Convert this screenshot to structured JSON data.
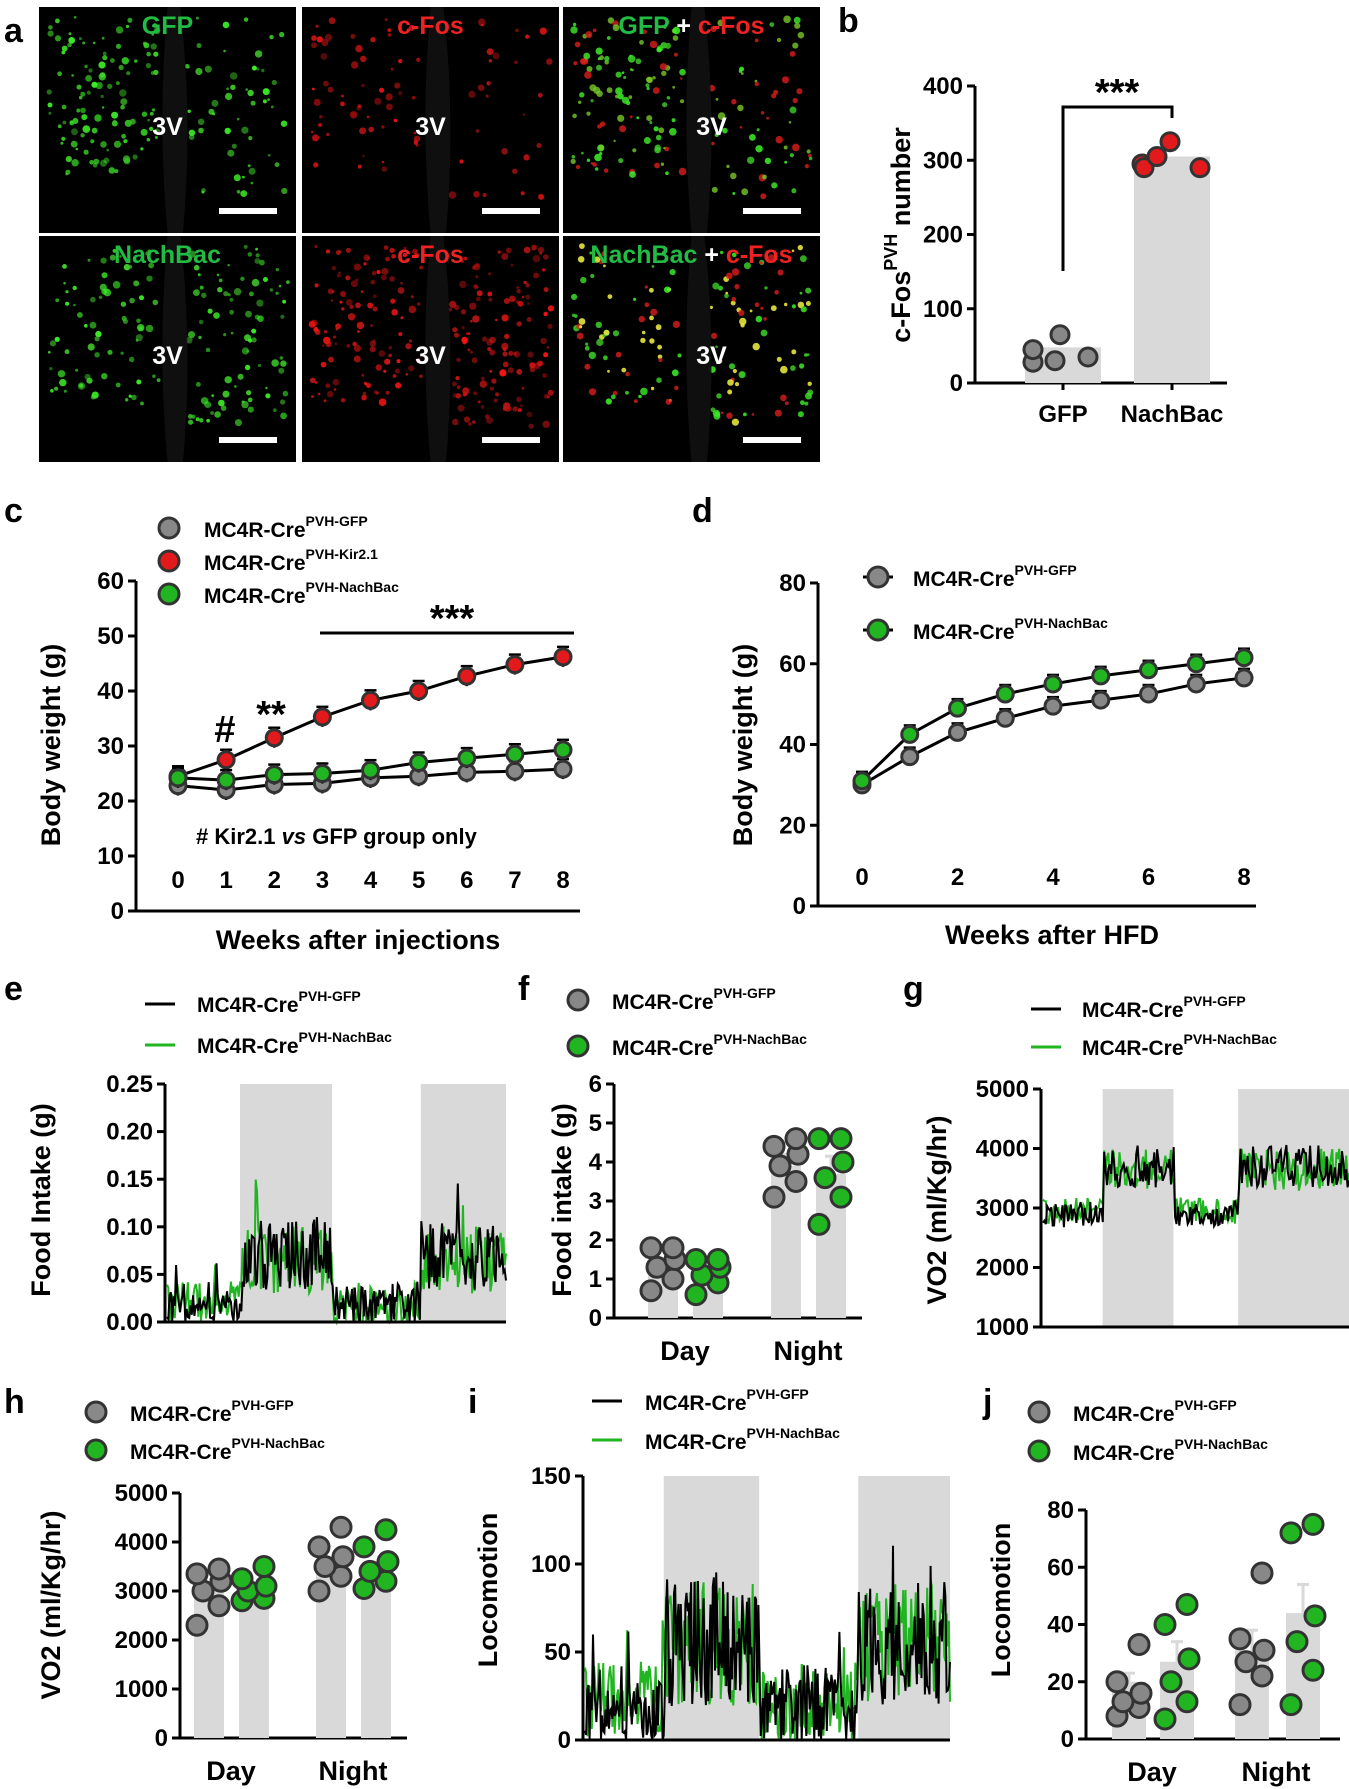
{
  "panels": {
    "a": {
      "label": "a",
      "tiles": [
        {
          "parts": [
            {
              "text": "GFP",
              "color": "#22bb44"
            }
          ],
          "region": "3V",
          "channel": "green"
        },
        {
          "parts": [
            {
              "text": "c-Fos",
              "color": "#ee2222"
            }
          ],
          "region": "3V",
          "channel": "red"
        },
        {
          "parts": [
            {
              "text": "GFP",
              "color": "#22bb44"
            },
            {
              "text": " + ",
              "color": "#ffffff"
            },
            {
              "text": "c-Fos",
              "color": "#ee2222"
            }
          ],
          "region": "3V",
          "channel": "merge"
        },
        {
          "parts": [
            {
              "text": "NachBac",
              "color": "#22bb44"
            }
          ],
          "region": "3V",
          "channel": "green"
        },
        {
          "parts": [
            {
              "text": "c-Fos",
              "color": "#ee2222"
            }
          ],
          "region": "3V",
          "channel": "red"
        },
        {
          "parts": [
            {
              "text": "NachBac",
              "color": "#22bb44"
            },
            {
              "text": " + ",
              "color": "#ffffff"
            },
            {
              "text": "c-Fos",
              "color": "#ee2222"
            }
          ],
          "region": "3V",
          "channel": "merge"
        }
      ]
    },
    "b": {
      "label": "b",
      "ylabel_main": "c-Fos",
      "ylabel_sup": "PVH",
      "ylabel_tail": " number",
      "sig": "***"
    },
    "c": {
      "label": "c",
      "xlabel": "Weeks after injections",
      "ylabel": "Body weight (g)",
      "sig_hash": "#",
      "sig_double": "**",
      "sig_triple": "***",
      "note_pre": "# Kir2.1 ",
      "note_vs": "vs",
      "note_post": " GFP group only"
    },
    "d": {
      "label": "d",
      "xlabel": "Weeks after HFD",
      "ylabel": "Body weight (g)"
    },
    "e": {
      "label": "e",
      "ylabel": "Food Intake (g)"
    },
    "f": {
      "label": "f",
      "ylabel": "Food intake (g)"
    },
    "g": {
      "label": "g",
      "ylabel": "VO2 (ml/Kg/hr)"
    },
    "h": {
      "label": "h",
      "ylabel": "VO2 (ml/Kg/hr)"
    },
    "i": {
      "label": "i",
      "ylabel": "Locomotion"
    },
    "j": {
      "label": "j",
      "ylabel": "Locomotion"
    }
  },
  "legend": {
    "base": "MC4R-Cre",
    "gfp": "PVH-GFP",
    "kir": "PVH-Kir2.1",
    "nachbac": "PVH-NachBac"
  },
  "colors": {
    "gfp": "#888888",
    "kir": "#e31a1c",
    "nachbac": "#22b522",
    "bar": "#d9d9d9",
    "shade": "#d9d9d9"
  },
  "chart_data": [
    {
      "panel": "b",
      "type": "bar",
      "categories": [
        "GFP",
        "NachBac"
      ],
      "ylim": [
        0,
        400
      ],
      "yticks": [
        0,
        100,
        200,
        300,
        400
      ],
      "values": [
        48,
        305
      ],
      "points": [
        [
          28,
          45,
          65,
          30,
          35
        ],
        [
          295,
          290,
          325,
          305,
          290
        ]
      ],
      "significance": "***"
    },
    {
      "panel": "c",
      "type": "line",
      "x": [
        0,
        1,
        2,
        3,
        4,
        5,
        6,
        7,
        8
      ],
      "ylim": [
        0,
        60
      ],
      "yticks": [
        0,
        10,
        20,
        30,
        40,
        50,
        60
      ],
      "series": [
        {
          "name": "MC4R-Cre PVH-GFP",
          "values": [
            22.8,
            22,
            23,
            23.2,
            24.2,
            24.5,
            25.2,
            25.4,
            25.8
          ]
        },
        {
          "name": "MC4R-Cre PVH-Kir2.1",
          "values": [
            24.5,
            27.5,
            31.5,
            35.3,
            38.3,
            40,
            42.7,
            44.8,
            46.2
          ]
        },
        {
          "name": "MC4R-Cre PVH-NachBac",
          "values": [
            24.2,
            23.8,
            24.8,
            25,
            25.6,
            27,
            27.8,
            28.5,
            29.3
          ]
        }
      ]
    },
    {
      "panel": "d",
      "type": "line",
      "x": [
        0,
        1,
        2,
        3,
        4,
        5,
        6,
        7,
        8
      ],
      "ylim": [
        0,
        80
      ],
      "yticks": [
        0,
        20,
        40,
        60,
        80
      ],
      "xticks": [
        0,
        2,
        4,
        6,
        8
      ],
      "series": [
        {
          "name": "MC4R-Cre PVH-GFP",
          "values": [
            30,
            37,
            43,
            46.5,
            49.5,
            51,
            52.5,
            55,
            56.5
          ]
        },
        {
          "name": "MC4R-Cre PVH-NachBac",
          "values": [
            31,
            42.5,
            49,
            52.5,
            55,
            57,
            58.5,
            60,
            61.5
          ]
        }
      ]
    },
    {
      "panel": "e",
      "type": "line",
      "ylim": [
        0,
        0.25
      ],
      "yticks": [
        "0.00",
        "0.05",
        "0.10",
        "0.15",
        "0.20",
        "0.25"
      ],
      "dark_phases": [
        [
          0.22,
          0.49
        ],
        [
          0.75,
          1.0
        ]
      ],
      "series": [
        {
          "name": "MC4R-Cre PVH-GFP",
          "level": "day 0.02 / night 0.07"
        },
        {
          "name": "MC4R-Cre PVH-NachBac",
          "level": "day 0.02 / night 0.07"
        }
      ]
    },
    {
      "panel": "f",
      "type": "bar",
      "categories": [
        "Day",
        "Night"
      ],
      "ylim": [
        0,
        6
      ],
      "yticks": [
        0,
        1,
        2,
        3,
        4,
        5,
        6
      ],
      "series": [
        {
          "name": "MC4R-Cre PVH-GFP",
          "values": [
            1.3,
            3.9
          ],
          "points": [
            [
              0.7,
              1.0,
              1.3,
              1.5,
              1.8,
              1.8
            ],
            [
              3.1,
              3.5,
              3.9,
              4.2,
              4.4,
              4.6
            ]
          ]
        },
        {
          "name": "MC4R-Cre PVH-NachBac",
          "values": [
            1.1,
            3.7
          ],
          "points": [
            [
              0.6,
              0.9,
              1.1,
              1.3,
              1.5,
              1.5
            ],
            [
              2.4,
              3.1,
              3.6,
              4.0,
              4.6,
              4.6
            ]
          ]
        }
      ]
    },
    {
      "panel": "g",
      "type": "line",
      "ylim": [
        1000,
        5000
      ],
      "yticks": [
        1000,
        2000,
        3000,
        4000,
        5000
      ],
      "dark_phases": [
        [
          0.2,
          0.43
        ],
        [
          0.64,
          1.0
        ]
      ],
      "series": [
        {
          "name": "MC4R-Cre PVH-GFP",
          "level": "day 2900 / night 3700"
        },
        {
          "name": "MC4R-Cre PVH-NachBac",
          "level": "day 2950 / night 3650"
        }
      ]
    },
    {
      "panel": "h",
      "type": "bar",
      "categories": [
        "Day",
        "Night"
      ],
      "ylim": [
        0,
        5000
      ],
      "yticks": [
        0,
        1000,
        2000,
        3000,
        4000,
        5000
      ],
      "series": [
        {
          "name": "MC4R-Cre PVH-GFP",
          "values": [
            3100,
            3650
          ],
          "points": [
            [
              2300,
              2700,
              3000,
              3200,
              3350,
              3450
            ],
            [
              3000,
              3300,
              3500,
              3700,
              3900,
              4300
            ]
          ]
        },
        {
          "name": "MC4R-Cre PVH-NachBac",
          "values": [
            3000,
            3450
          ],
          "points": [
            [
              2800,
              2850,
              3000,
              3100,
              3250,
              3500
            ],
            [
              3050,
              3200,
              3400,
              3600,
              3900,
              4250
            ]
          ]
        }
      ]
    },
    {
      "panel": "i",
      "type": "line",
      "ylim": [
        0,
        150
      ],
      "yticks": [
        0,
        50,
        100,
        150
      ],
      "dark_phases": [
        [
          0.22,
          0.48
        ],
        [
          0.75,
          1.0
        ]
      ],
      "series": [
        {
          "name": "MC4R-Cre PVH-GFP",
          "level": "day 20 / night 55"
        },
        {
          "name": "MC4R-Cre PVH-NachBac",
          "level": "day 22 / night 55"
        }
      ]
    },
    {
      "panel": "j",
      "type": "bar",
      "categories": [
        "Day",
        "Night"
      ],
      "ylim": [
        0,
        80
      ],
      "yticks": [
        0,
        20,
        40,
        60,
        80
      ],
      "series": [
        {
          "name": "MC4R-Cre PVH-GFP",
          "values": [
            20,
            31
          ],
          "points": [
            [
              8,
              11,
              13,
              16,
              20,
              33
            ],
            [
              12,
              22,
              27,
              31,
              35,
              58
            ]
          ]
        },
        {
          "name": "MC4R-Cre PVH-NachBac",
          "values": [
            27,
            44
          ],
          "points": [
            [
              7,
              13,
              20,
              28,
              40,
              47
            ],
            [
              12,
              24,
              34,
              43,
              72,
              75
            ]
          ]
        }
      ]
    }
  ]
}
